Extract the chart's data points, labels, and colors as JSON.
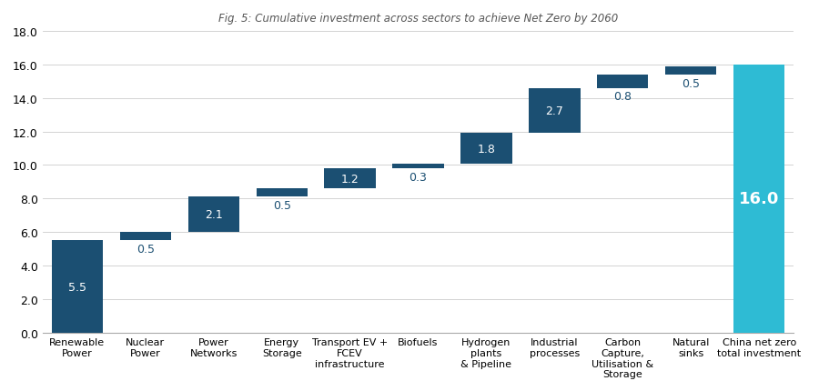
{
  "categories": [
    "Renewable\nPower",
    "Nuclear\nPower",
    "Power\nNetworks",
    "Energy\nStorage",
    "Transport EV +\nFCEV\ninfrastructure",
    "Biofuels",
    "Hydrogen\nplants\n& Pipeline",
    "Industrial\nprocesses",
    "Carbon\nCapture,\nUtilisation &\nStorage",
    "Natural\nsinks",
    "China net zero\ntotal investment"
  ],
  "values": [
    5.5,
    0.5,
    2.1,
    0.5,
    1.2,
    0.3,
    1.8,
    2.7,
    0.8,
    0.5,
    16.0
  ],
  "bar_color_waterfall": "#1b4f72",
  "bar_color_total": "#2ebbd4",
  "label_color_waterfall_inside": "#ffffff",
  "label_color_waterfall_outside": "#1b4f72",
  "title": "Fig. 5: Cumulative investment across sectors to achieve Net Zero by 2060",
  "ylim": [
    0,
    18.0
  ],
  "yticks": [
    0.0,
    2.0,
    4.0,
    6.0,
    8.0,
    10.0,
    12.0,
    14.0,
    16.0,
    18.0
  ],
  "background_color": "#ffffff",
  "grid_color": "#cccccc",
  "total_label_color": "#ffffff",
  "total_label_fontsize": 13,
  "bar_label_fontsize": 9,
  "xlabel_fontsize": 8,
  "ytick_fontsize": 9,
  "bar_width": 0.75,
  "inside_threshold": 1.0
}
